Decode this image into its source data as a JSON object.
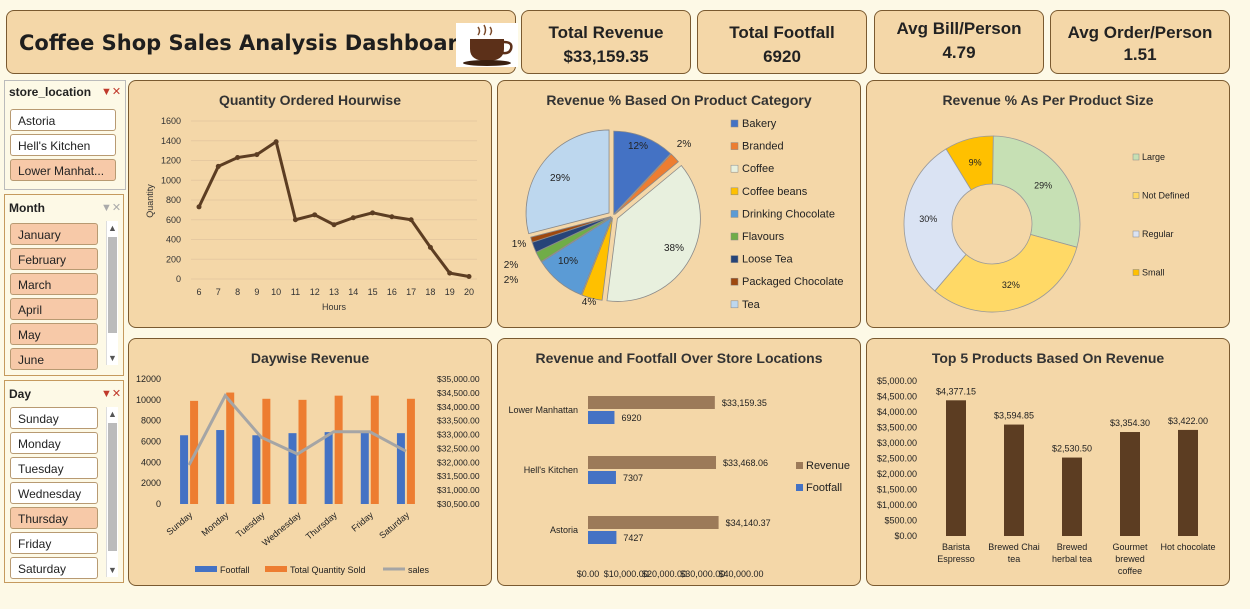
{
  "header": {
    "title": "Coffee Shop Sales Analysis Dashboard"
  },
  "kpis": [
    {
      "label": "Total Revenue",
      "value": "$33,159.35"
    },
    {
      "label": "Total Footfall",
      "value": "6920"
    },
    {
      "label": "Avg Bill/Person",
      "value": "4.79"
    },
    {
      "label": "Avg Order/Person",
      "value": "1.51"
    }
  ],
  "slicers": {
    "store": {
      "title": "store_location",
      "items": [
        {
          "label": "Astoria",
          "selected": false
        },
        {
          "label": "Hell's Kitchen",
          "selected": false
        },
        {
          "label": "Lower Manhat...",
          "selected": true
        }
      ]
    },
    "month": {
      "title": "Month",
      "items": [
        {
          "label": "January",
          "selected": true
        },
        {
          "label": "February",
          "selected": true
        },
        {
          "label": "March",
          "selected": true
        },
        {
          "label": "April",
          "selected": true
        },
        {
          "label": "May",
          "selected": true
        },
        {
          "label": "June",
          "selected": true
        }
      ]
    },
    "day": {
      "title": "Day",
      "items": [
        {
          "label": "Sunday",
          "selected": false
        },
        {
          "label": "Monday",
          "selected": false
        },
        {
          "label": "Tuesday",
          "selected": false
        },
        {
          "label": "Wednesday",
          "selected": false
        },
        {
          "label": "Thursday",
          "selected": true
        },
        {
          "label": "Friday",
          "selected": false
        },
        {
          "label": "Saturday",
          "selected": false
        }
      ]
    }
  },
  "chart_data": [
    {
      "id": "hourly",
      "type": "line",
      "title": "Quantity Ordered Hourwise",
      "xlabel": "Hours",
      "ylabel": "Quantity",
      "x": [
        6,
        7,
        8,
        9,
        10,
        11,
        12,
        13,
        14,
        15,
        16,
        17,
        18,
        19,
        20
      ],
      "values": [
        730,
        1140,
        1230,
        1260,
        1390,
        600,
        650,
        550,
        620,
        670,
        630,
        600,
        320,
        60,
        25
      ],
      "ylim": [
        0,
        1600
      ],
      "yticks": [
        "0",
        "200",
        "400",
        "600",
        "800",
        "1000",
        "1200",
        "1400",
        "1600"
      ],
      "color": "#5c3d22"
    },
    {
      "id": "category",
      "type": "pie",
      "title": "Revenue % Based On Product Category",
      "categories": [
        "Bakery",
        "Branded",
        "Coffee",
        "Coffee beans",
        "Drinking Chocolate",
        "Flavours",
        "Loose Tea",
        "Packaged Chocolate",
        "Tea"
      ],
      "values": [
        12,
        2,
        38,
        4,
        10,
        2,
        2,
        1,
        29
      ],
      "labels": [
        "12%",
        "2%",
        "38%",
        "4%",
        "10%",
        "2%",
        "2%",
        "1%",
        "29%"
      ],
      "colors": [
        "#4472c4",
        "#ed7d31",
        "#e8f0de",
        "#ffc000",
        "#5b9bd5",
        "#70ad47",
        "#264478",
        "#9e480e",
        "#bdd7ee"
      ]
    },
    {
      "id": "size",
      "type": "pie",
      "title": "Revenue % As Per Product Size",
      "categories": [
        "Large",
        "Not Defined",
        "Regular",
        "Small"
      ],
      "values": [
        29,
        32,
        30,
        9
      ],
      "labels": [
        "29%",
        "32%",
        "30%",
        "9%"
      ],
      "colors": [
        "#c6e0b4",
        "#ffd966",
        "#dae3f3",
        "#ffc000"
      ]
    },
    {
      "id": "daywise",
      "type": "bar",
      "title": "Daywise Revenue",
      "categories": [
        "Sunday",
        "Monday",
        "Tuesday",
        "Wednesday",
        "Thursday",
        "Friday",
        "Saturday"
      ],
      "series": [
        {
          "name": "Footfall",
          "color": "#4472c4",
          "values": [
            6600,
            7100,
            6600,
            6800,
            6900,
            7000,
            6800
          ]
        },
        {
          "name": "Total Quantity Sold",
          "color": "#ed7d31",
          "values": [
            9900,
            10700,
            10100,
            10000,
            10400,
            10400,
            10100
          ]
        },
        {
          "name": "sales",
          "color": "#a5a5a5",
          "axis": "right",
          "values": [
            31900,
            34400,
            32900,
            32300,
            33100,
            33100,
            32400
          ]
        }
      ],
      "ylim": [
        0,
        12000
      ],
      "yticks": [
        "0",
        "2000",
        "4000",
        "6000",
        "8000",
        "10000",
        "12000"
      ],
      "y2lim": [
        30500,
        35000
      ],
      "y2ticks": [
        "$30,500.00",
        "$31,000.00",
        "$31,500.00",
        "$32,000.00",
        "$32,500.00",
        "$33,000.00",
        "$33,500.00",
        "$34,000.00",
        "$34,500.00",
        "$35,000.00"
      ]
    },
    {
      "id": "locations",
      "type": "bar",
      "orientation": "horizontal",
      "title": "Revenue and Footfall Over Store Locations",
      "categories": [
        "Lower Manhattan",
        "Hell's Kitchen",
        "Astoria"
      ],
      "series": [
        {
          "name": "Revenue",
          "color": "#9c7a59",
          "values": [
            33159.35,
            33468.06,
            34140.37
          ],
          "labels": [
            "$33,159.35",
            "$33,468.06",
            "$34,140.37"
          ]
        },
        {
          "name": "Footfall",
          "color": "#4472c4",
          "values": [
            6920,
            7307,
            7427
          ],
          "labels": [
            "6920",
            "7307",
            "7427"
          ]
        }
      ],
      "xlim": [
        0,
        40000
      ],
      "xticks": [
        "$0.00",
        "$10,000.00",
        "$20,000.00",
        "$30,000.00",
        "$40,000.00"
      ]
    },
    {
      "id": "top5",
      "type": "bar",
      "title": "Top 5 Products Based On Revenue",
      "categories": [
        "Barista Espresso",
        "Brewed Chai tea",
        "Brewed herbal tea",
        "Gourmet brewed coffee",
        "Hot chocolate"
      ],
      "values": [
        4377.15,
        3594.85,
        2530.5,
        3354.3,
        3422.0
      ],
      "labels": [
        "$4,377.15",
        "$3,594.85",
        "$2,530.50",
        "$3,354.30",
        "$3,422.00"
      ],
      "ylim": [
        0,
        5000
      ],
      "yticks": [
        "$0.00",
        "$500.00",
        "$1,000.00",
        "$1,500.00",
        "$2,000.00",
        "$2,500.00",
        "$3,000.00",
        "$3,500.00",
        "$4,000.00",
        "$4,500.00",
        "$5,000.00"
      ],
      "color": "#5c3d22"
    }
  ]
}
